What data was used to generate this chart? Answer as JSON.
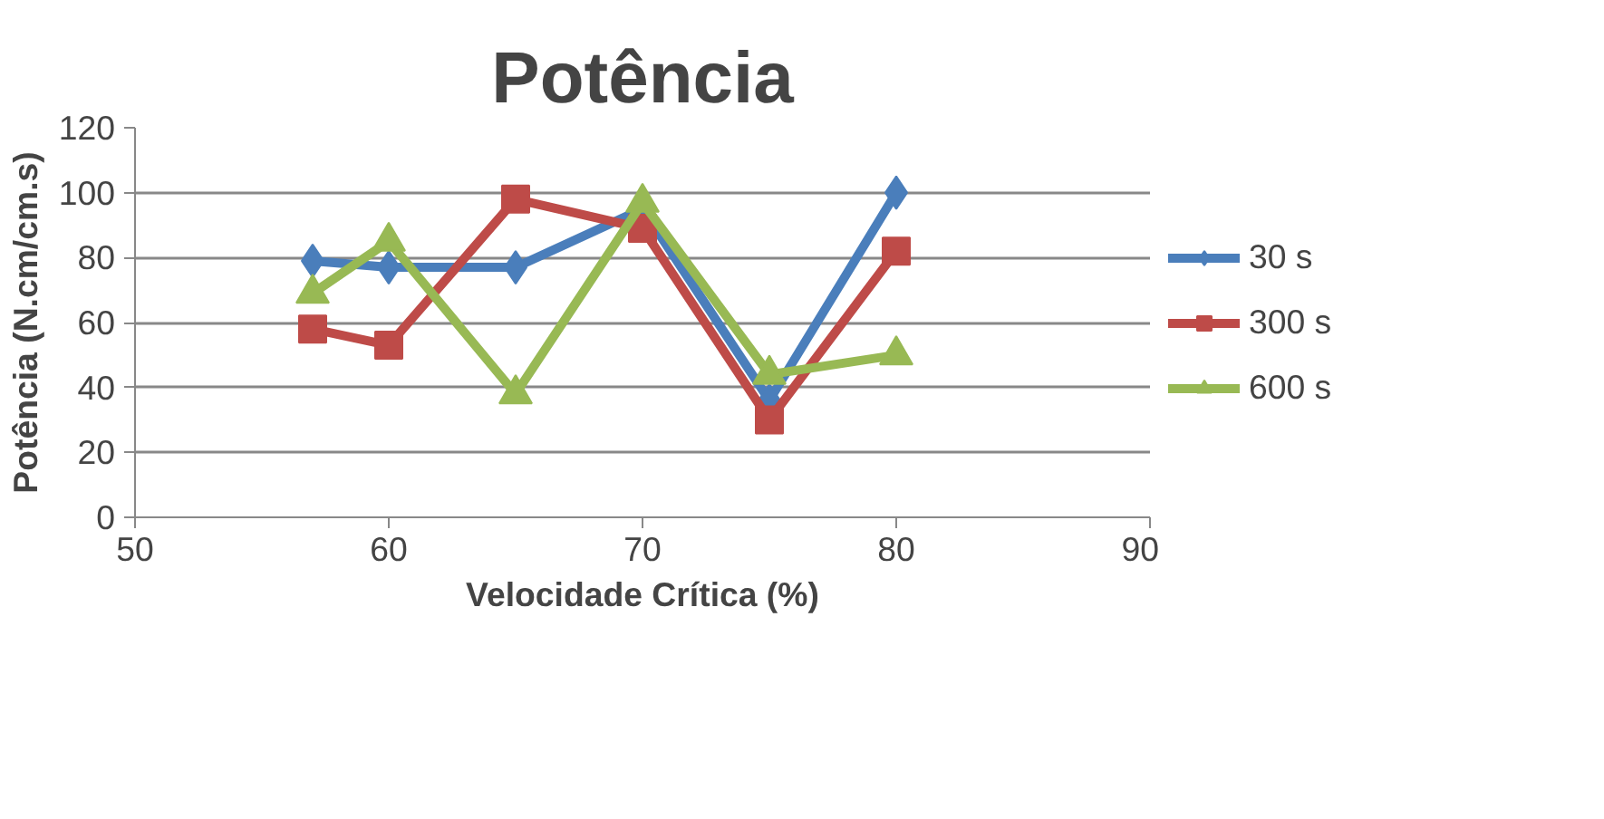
{
  "chart_data": {
    "type": "line",
    "title": "Potência",
    "xlabel": "Velocidade Crítica (%)",
    "ylabel": "Potência (N.cm/cm.s)",
    "x": [
      57,
      60,
      65,
      70,
      75,
      80
    ],
    "series": [
      {
        "name": "30 s",
        "color": "#4a7ebb",
        "marker": "diamond",
        "values": [
          79,
          77,
          77,
          95,
          36,
          100
        ]
      },
      {
        "name": "300 s",
        "color": "#be4b48",
        "marker": "square",
        "values": [
          58,
          53,
          98,
          89,
          30,
          82
        ]
      },
      {
        "name": "600 s",
        "color": "#98b954",
        "marker": "triangle",
        "values": [
          69,
          85,
          38,
          97,
          44,
          50
        ]
      }
    ],
    "xlim": [
      50,
      90
    ],
    "xticks": [
      50,
      60,
      70,
      80,
      90
    ],
    "ylim": [
      0,
      120
    ],
    "yticks": [
      0,
      20,
      40,
      60,
      80,
      100,
      120
    ],
    "grid": "y",
    "legend": "right",
    "line_style": "solid"
  }
}
